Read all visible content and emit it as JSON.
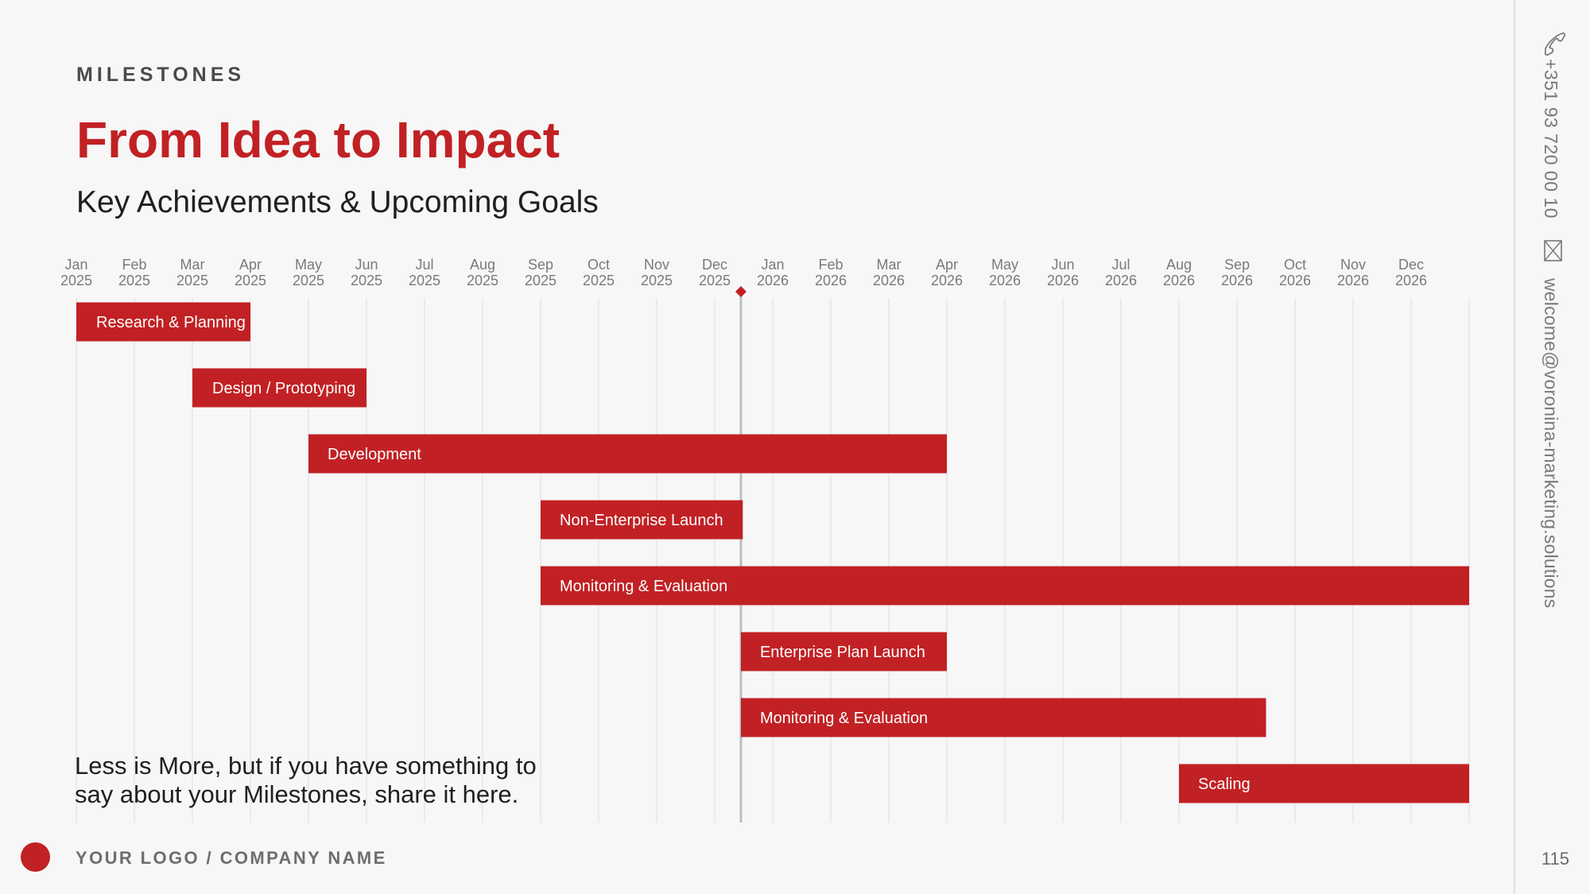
{
  "header": {
    "section_label": "MILESTONES",
    "title": "From Idea to Impact",
    "subtitle": "Key Achievements & Upcoming Goals"
  },
  "contact": {
    "phone": "+351 93 720 00 10",
    "email": "welcome@voronina-marketing.solutions",
    "phone_icon": "phone-icon",
    "email_icon": "mail-icon"
  },
  "footer": {
    "note": "Less is More, but if you have something to say about your Milestones, share it here.",
    "company_name": "YOUR LOGO / COMPANY NAME",
    "page_number": "115",
    "logo_icon": "red-dot-logo"
  },
  "colors": {
    "accent": "#c12124",
    "text": "#1f1f1f",
    "muted": "#7a7a7a",
    "grid": "#e6e6e6",
    "today_line": "#bdbdbd",
    "background": "#f7f7f7"
  },
  "chart_data": {
    "type": "gantt",
    "title": "",
    "x_axis": {
      "months": [
        {
          "month": "Jan",
          "year": "2025"
        },
        {
          "month": "Feb",
          "year": "2025"
        },
        {
          "month": "Mar",
          "year": "2025"
        },
        {
          "month": "Apr",
          "year": "2025"
        },
        {
          "month": "May",
          "year": "2025"
        },
        {
          "month": "Jun",
          "year": "2025"
        },
        {
          "month": "Jul",
          "year": "2025"
        },
        {
          "month": "Aug",
          "year": "2025"
        },
        {
          "month": "Sep",
          "year": "2025"
        },
        {
          "month": "Oct",
          "year": "2025"
        },
        {
          "month": "Nov",
          "year": "2025"
        },
        {
          "month": "Dec",
          "year": "2025"
        },
        {
          "month": "Jan",
          "year": "2026"
        },
        {
          "month": "Feb",
          "year": "2026"
        },
        {
          "month": "Mar",
          "year": "2026"
        },
        {
          "month": "Apr",
          "year": "2026"
        },
        {
          "month": "May",
          "year": "2026"
        },
        {
          "month": "Jun",
          "year": "2026"
        },
        {
          "month": "Jul",
          "year": "2026"
        },
        {
          "month": "Aug",
          "year": "2026"
        },
        {
          "month": "Sep",
          "year": "2026"
        },
        {
          "month": "Oct",
          "year": "2026"
        },
        {
          "month": "Nov",
          "year": "2026"
        },
        {
          "month": "Dec",
          "year": "2026"
        }
      ],
      "grid": true
    },
    "today_marker": {
      "date": "2025-12-15"
    },
    "tasks": [
      {
        "label": "Research & Planning",
        "start": "2025-01-01",
        "end": "2025-03-31"
      },
      {
        "label": "Design / Prototyping",
        "start": "2025-03-01",
        "end": "2025-05-31"
      },
      {
        "label": "Development",
        "start": "2025-05-01",
        "end": "2026-03-31"
      },
      {
        "label": "Non-Enterprise Launch",
        "start": "2025-09-01",
        "end": "2025-12-15"
      },
      {
        "label": "Monitoring & Evaluation",
        "start": "2025-09-01",
        "end": "2026-12-31"
      },
      {
        "label": "Enterprise Plan Launch",
        "start": "2025-12-15",
        "end": "2026-03-31"
      },
      {
        "label": "Monitoring & Evaluation",
        "start": "2025-12-15",
        "end": "2026-09-15"
      },
      {
        "label": "Scaling",
        "start": "2026-08-01",
        "end": "2026-12-31"
      }
    ]
  }
}
